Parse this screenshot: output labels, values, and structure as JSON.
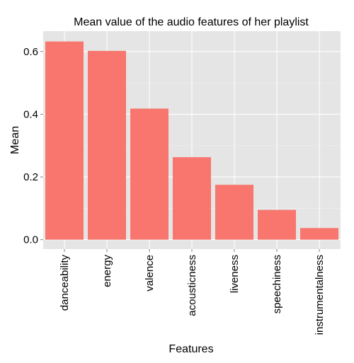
{
  "chart_data": {
    "type": "bar",
    "title": "Mean value of the audio features of her playlist",
    "xlabel": "Features",
    "ylabel": "Mean",
    "categories": [
      "danceability",
      "energy",
      "valence",
      "acousticness",
      "liveness",
      "speechiness",
      "instrumentalness"
    ],
    "values": [
      0.632,
      0.602,
      0.418,
      0.263,
      0.175,
      0.095,
      0.037
    ],
    "ylim": [
      -0.03,
      0.665
    ],
    "yticks": [
      0.0,
      0.2,
      0.4,
      0.6
    ],
    "ytick_labels": [
      "0.0",
      "0.2",
      "0.4",
      "0.6"
    ],
    "grid": true,
    "legend": "none",
    "colors": {
      "bar": "#f8766d",
      "panel_background": "#e5e5e5",
      "grid_major": "#ffffff",
      "grid_minor": "#f2f2f2"
    }
  }
}
